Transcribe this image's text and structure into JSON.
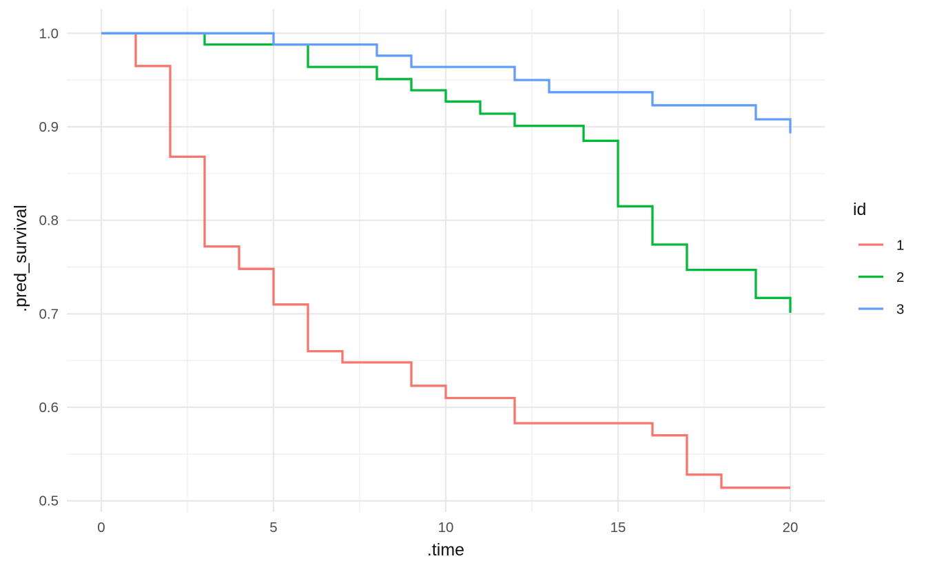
{
  "figure": {
    "background": "#FFFFFF"
  },
  "chart_data": {
    "type": "line",
    "subtype": "step-hv",
    "title": "",
    "xlabel": ".time",
    "ylabel": ".pred_survival",
    "x": [
      0,
      1,
      2,
      3,
      4,
      5,
      6,
      7,
      8,
      9,
      10,
      11,
      12,
      13,
      14,
      15,
      16,
      17,
      18,
      19,
      20
    ],
    "series": [
      {
        "name": "1",
        "color": "#F8766D",
        "values": [
          1.0,
          0.965,
          0.868,
          0.772,
          0.748,
          0.71,
          0.66,
          0.648,
          0.648,
          0.623,
          0.61,
          0.61,
          0.583,
          0.583,
          0.583,
          0.583,
          0.57,
          0.528,
          0.514,
          0.514,
          0.514
        ]
      },
      {
        "name": "2",
        "color": "#00BA38",
        "values": [
          1.0,
          1.0,
          1.0,
          0.988,
          0.988,
          0.988,
          0.964,
          0.964,
          0.951,
          0.939,
          0.927,
          0.914,
          0.901,
          0.901,
          0.885,
          0.815,
          0.774,
          0.747,
          0.747,
          0.717,
          0.701
        ]
      },
      {
        "name": "3",
        "color": "#619CFF",
        "values": [
          1.0,
          1.0,
          1.0,
          1.0,
          1.0,
          0.988,
          0.988,
          0.988,
          0.976,
          0.964,
          0.964,
          0.964,
          0.95,
          0.937,
          0.937,
          0.937,
          0.923,
          0.923,
          0.923,
          0.908,
          0.893
        ]
      }
    ],
    "legend": {
      "title": "id",
      "position": "right",
      "entries": [
        "1",
        "2",
        "3"
      ]
    },
    "axes": {
      "x": {
        "tick_values": [
          0,
          5,
          10,
          15,
          20
        ],
        "tick_labels": [
          "0",
          "5",
          "10",
          "15",
          "20"
        ],
        "minor_values": [
          2.5,
          7.5,
          12.5,
          17.5
        ],
        "lim": [
          -1.0,
          21.0
        ]
      },
      "y": {
        "tick_values": [
          0.5,
          0.6,
          0.7,
          0.8,
          0.9,
          1.0
        ],
        "tick_labels": [
          "0.5",
          "0.6",
          "0.7",
          "0.8",
          "0.9",
          "1.0"
        ],
        "minor_values": [
          0.55,
          0.65,
          0.75,
          0.85,
          0.95
        ],
        "lim": [
          0.488,
          1.026
        ]
      }
    },
    "grid": {
      "major_color": "#E8E8E8",
      "minor_color": "#F0F0F0"
    },
    "theme": {
      "tick_label_color": "#4D4D4D",
      "axis_title_color": "#111111",
      "legend_text_color": "#111111",
      "line_width": 3.3
    }
  }
}
